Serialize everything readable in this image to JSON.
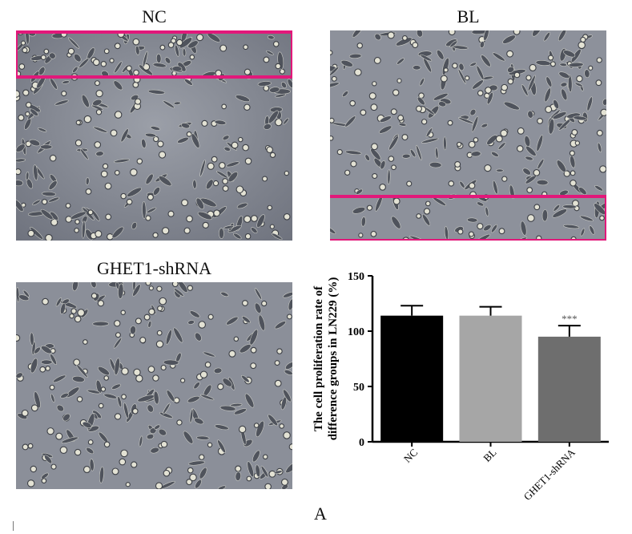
{
  "panels": [
    {
      "id": "nc",
      "title": "NC"
    },
    {
      "id": "bl",
      "title": "BL"
    },
    {
      "id": "ghet1",
      "title": "GHET1-shRNA"
    }
  ],
  "figure_label": "A",
  "colors": {
    "highlight": "#e2187a",
    "bar_nc": "#000000",
    "bar_bl": "#a6a6a6",
    "bar_ghet": "#6e6e6e"
  },
  "chart_data": {
    "type": "bar",
    "categories": [
      "NC",
      "BL",
      "GHET1-shRNA"
    ],
    "values": [
      114,
      114,
      95
    ],
    "errors": [
      9,
      8,
      10
    ],
    "significance": [
      "",
      "",
      "***"
    ],
    "ylabel": "The cell proliferation rate of difference groups in LN229 (%)",
    "yticks": [
      0,
      50,
      100,
      150
    ],
    "ylim": [
      0,
      150
    ],
    "bar_colors": [
      "#000000",
      "#a6a6a6",
      "#6e6e6e"
    ]
  }
}
